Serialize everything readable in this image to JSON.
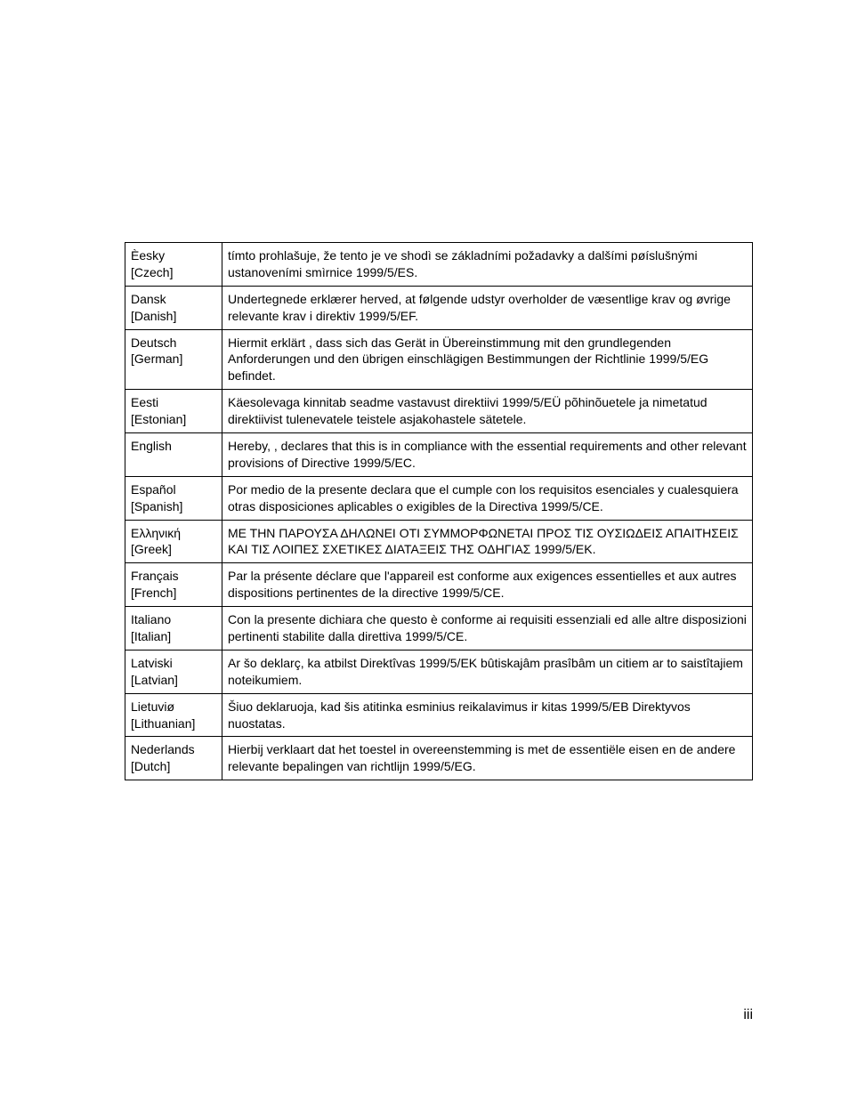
{
  "page_number": "iii",
  "rows": [
    {
      "lang": "Èesky",
      "lang_en": "[Czech]",
      "text": "tímto prohlašuje, že tento je ve shodì se základními požadavky a dalšími pøíslušnými ustanoveními smìrnice 1999/5/ES."
    },
    {
      "lang": "Dansk",
      "lang_en": "[Danish]",
      "text": "Undertegnede erklærer herved, at følgende udstyr overholder de væsentlige krav og øvrige relevante krav i direktiv 1999/5/EF."
    },
    {
      "lang": "Deutsch",
      "lang_en": "[German]",
      "text": "Hiermit erklärt , dass sich das Gerät in Übereinstimmung mit den grundlegenden Anforderungen und den übrigen einschlägigen Bestimmungen der Richtlinie 1999/5/EG befindet."
    },
    {
      "lang": "Eesti",
      "lang_en": "[Estonian]",
      "text": "Käesolevaga kinnitab seadme vastavust direktiivi 1999/5/EÜ põhinõuetele ja nimetatud direktiivist tulenevatele teistele asjakohastele sätetele."
    },
    {
      "lang": "English",
      "lang_en": "",
      "text": "Hereby, , declares that this is in compliance with the essential requirements and other relevant provisions of Directive 1999/5/EC."
    },
    {
      "lang": "Español",
      "lang_en": "[Spanish]",
      "text": "Por medio de la presente declara que el cumple con los requisitos esenciales y cualesquiera otras disposiciones aplicables o exigibles de la Directiva 1999/5/CE."
    },
    {
      "lang": "Ελληνική",
      "lang_en": "[Greek]",
      "text": "ΜΕ ΤΗΝ ΠΑΡΟΥΣΑ ΔΗΛΩΝΕΙ ΟΤΙ ΣΥΜΜΟΡΦΩΝΕΤΑΙ ΠΡΟΣ ΤΙΣ ΟΥΣΙΩΔΕΙΣ ΑΠΑΙΤΗΣΕΙΣ ΚΑΙ ΤΙΣ ΛΟΙΠΕΣ ΣΧΕΤΙΚΕΣ ΔΙΑΤΑΞΕΙΣ ΤΗΣ ΟΔΗΓΙΑΣ 1999/5/ΕΚ."
    },
    {
      "lang": "Français",
      "lang_en": "[French]",
      "text": "Par la présente déclare que l'appareil est conforme aux exigences essentielles et aux autres dispositions pertinentes de la directive 1999/5/CE."
    },
    {
      "lang": "Italiano",
      "lang_en": "[Italian]",
      "text": "Con la presente dichiara che questo è conforme ai requisiti essenziali ed alle altre disposizioni pertinenti stabilite dalla direttiva 1999/5/CE."
    },
    {
      "lang": "Latviski",
      "lang_en": "[Latvian]",
      "text": "Ar šo deklarç, ka atbilst Direktîvas 1999/5/EK bûtiskajâm prasîbâm un citiem ar to saistîtajiem noteikumiem."
    },
    {
      "lang": "Lietuviø",
      "lang_en": "[Lithuanian]",
      "text": "Šiuo deklaruoja, kad šis atitinka esminius reikalavimus ir kitas 1999/5/EB Direktyvos nuostatas."
    },
    {
      "lang": "Nederlands",
      "lang_en": "[Dutch]",
      "text": "Hierbij verklaart dat het toestel in overeenstemming is met de essentiële eisen en de andere relevante bepalingen van richtlijn 1999/5/EG."
    }
  ]
}
